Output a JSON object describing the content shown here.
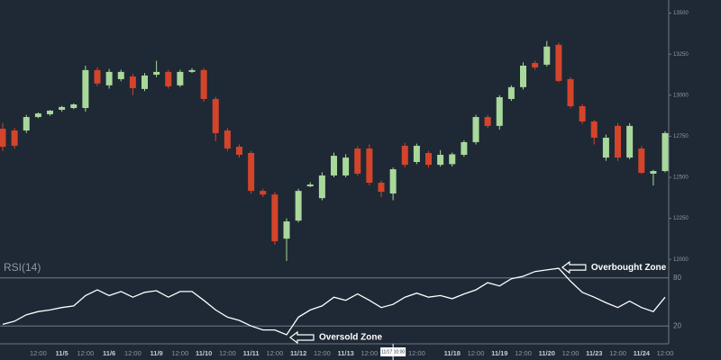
{
  "chart_data": [
    {
      "type": "candlestick",
      "categories": [
        null,
        null,
        null,
        "12:00",
        null,
        "11/5",
        null,
        "12:00",
        null,
        "11/6",
        null,
        "12:00",
        null,
        "11/9",
        null,
        "12:00",
        null,
        "11/10",
        null,
        "12:00",
        null,
        "11/11",
        null,
        "12:00",
        null,
        "11/12",
        null,
        "12:00",
        null,
        "11/13",
        null,
        "12:00",
        null,
        "11/17 10:00",
        null,
        "12:00",
        null,
        null,
        "11/18",
        null,
        "12:00",
        null,
        "11/19",
        null,
        "12:00",
        null,
        "11/20",
        null,
        "12:00",
        null,
        "11/23",
        null,
        "12:00",
        null,
        "11/24",
        null,
        "12:00"
      ],
      "open": [
        12796,
        12785,
        12785,
        12867,
        12884,
        12911,
        12922,
        12922,
        13153,
        13060,
        13098,
        13114,
        13038,
        13125,
        13142,
        13060,
        13142,
        13153,
        12977,
        12785,
        12686,
        12648,
        12417,
        12395,
        12126,
        12236,
        12445,
        12373,
        12511,
        12511,
        12675,
        12675,
        12467,
        12401,
        12692,
        12593,
        12648,
        12576,
        12580,
        12637,
        12714,
        12867,
        12813,
        12977,
        13049,
        13196,
        13186,
        13307,
        13098,
        12933,
        12840,
        12620,
        12813,
        12620,
        12675,
        12522,
        12538
      ],
      "high": [
        12830,
        12800,
        12880,
        12895,
        12910,
        12935,
        12950,
        13180,
        13170,
        13160,
        13155,
        13130,
        13135,
        13210,
        13155,
        13155,
        13165,
        13165,
        12990,
        12800,
        12700,
        12660,
        12430,
        12410,
        12250,
        12430,
        12470,
        12530,
        12650,
        12640,
        12690,
        12700,
        12480,
        12560,
        12710,
        12705,
        12660,
        12665,
        12650,
        12725,
        12880,
        12880,
        13000,
        13060,
        13200,
        13210,
        13330,
        13320,
        13110,
        12945,
        12850,
        12760,
        12830,
        12830,
        12690,
        12545,
        12780
      ],
      "low": [
        12660,
        12675,
        12770,
        12860,
        12875,
        12900,
        12915,
        12900,
        13055,
        13040,
        13085,
        13000,
        13025,
        13110,
        13040,
        13050,
        13135,
        12960,
        12720,
        12660,
        12620,
        12400,
        12380,
        12090,
        11990,
        12225,
        12440,
        12360,
        12500,
        12500,
        12510,
        12450,
        12380,
        12360,
        12560,
        12580,
        12560,
        12565,
        12565,
        12625,
        12700,
        12800,
        12790,
        12965,
        13035,
        13155,
        13175,
        13080,
        12920,
        12825,
        12700,
        12600,
        12600,
        12610,
        12520,
        12450,
        12530
      ],
      "close": [
        12686,
        12692,
        12867,
        12889,
        12906,
        12928,
        12944,
        13153,
        13071,
        13142,
        13142,
        13043,
        13120,
        13142,
        13054,
        13142,
        13153,
        12977,
        12769,
        12675,
        12637,
        12417,
        12395,
        12110,
        12231,
        12417,
        12456,
        12511,
        12631,
        12620,
        12522,
        12467,
        12412,
        12549,
        12576,
        12692,
        12576,
        12637,
        12640,
        12714,
        12867,
        12813,
        12988,
        13049,
        13180,
        13169,
        13296,
        13087,
        12933,
        12840,
        12741,
        12741,
        12620,
        12813,
        12527,
        12538,
        12769
      ],
      "up_color": "#a9d89b",
      "down_color": "#d4442b",
      "ylim": [
        11990,
        13580
      ],
      "yticks": [
        12000,
        12250,
        12500,
        12750,
        13000,
        13250,
        13500
      ]
    },
    {
      "type": "line",
      "title": "RSI(14)",
      "values": [
        22,
        26,
        34,
        38,
        40,
        43,
        45,
        58,
        65,
        58,
        63,
        56,
        62,
        64,
        56,
        63,
        63,
        52,
        40,
        31,
        27,
        20,
        15,
        15,
        9,
        31,
        40,
        45,
        56,
        52,
        60,
        52,
        43,
        47,
        56,
        61,
        56,
        58,
        54,
        60,
        65,
        74,
        70,
        79,
        82,
        88,
        90,
        92,
        76,
        62,
        56,
        49,
        43,
        51,
        43,
        38,
        56
      ],
      "color": "#ffffff",
      "ylim": [
        0,
        100
      ],
      "yticks": [
        20,
        80
      ],
      "annotations": [
        {
          "text": "Overbought Zone"
        },
        {
          "text": "Oversold Zone"
        }
      ]
    }
  ]
}
